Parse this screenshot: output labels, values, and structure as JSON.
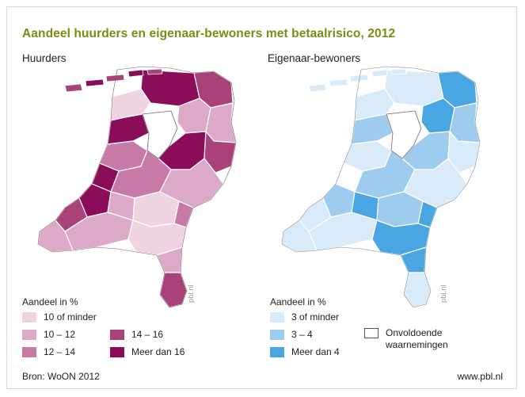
{
  "title": "Aandeel huurders en eigenaar-bewoners met betaalrisico, 2012",
  "left_panel": {
    "title": "Huurders",
    "watermark": "pbl.nl",
    "legend_title": "Aandeel in %",
    "legend": [
      {
        "label": "10 of minder",
        "color": "#efd3e1"
      },
      {
        "label": "10 – 12",
        "color": "#dcaac6"
      },
      {
        "label": "12 – 14",
        "color": "#c77aa5"
      },
      {
        "label": "14 – 16",
        "color": "#a84279"
      },
      {
        "label": "Meer dan 16",
        "color": "#8b0d5a"
      }
    ]
  },
  "right_panel": {
    "title": "Eigenaar-bewoners",
    "watermark": "pbl.nl",
    "legend_title": "Aandeel in %",
    "legend": [
      {
        "label": "3 of minder",
        "color": "#d9ebf8"
      },
      {
        "label": "3 – 4",
        "color": "#9dccef"
      },
      {
        "label": "Meer dan 4",
        "color": "#49a6e2"
      }
    ],
    "no_data": {
      "line1": "Onvoldoende",
      "line2": "waarnemingen",
      "color": "#ffffff"
    }
  },
  "source": "Bron: WoON 2012",
  "site": "www.pbl.nl"
}
